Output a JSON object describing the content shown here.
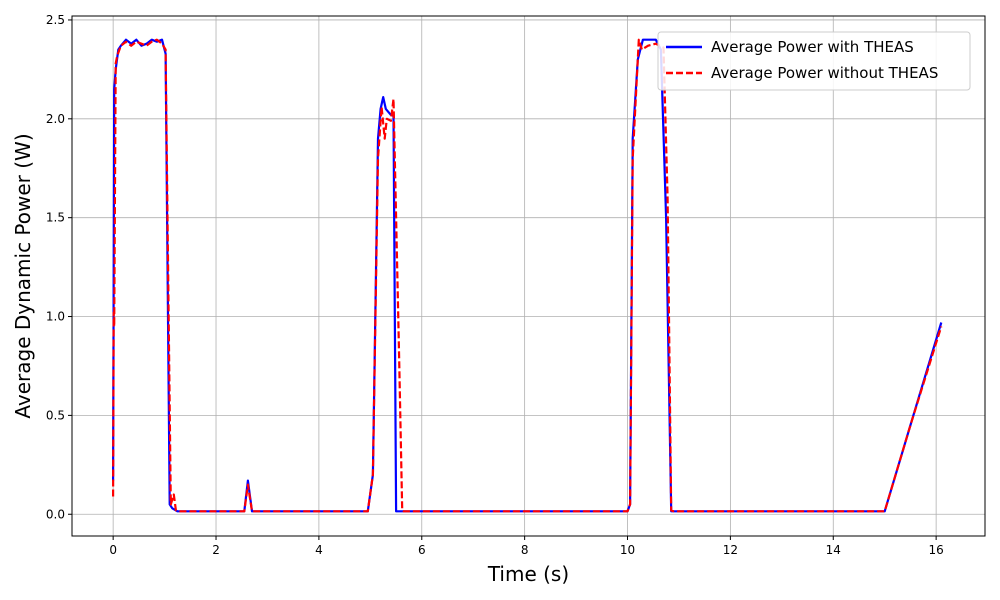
{
  "chart_data": {
    "type": "line",
    "title": "",
    "xlabel": "Time (s)",
    "ylabel": "Average Dynamic Power (W)",
    "xlim": [
      -0.8,
      16.95
    ],
    "ylim": [
      -0.11,
      2.52
    ],
    "xticks": [
      0,
      2,
      4,
      6,
      8,
      10,
      12,
      14,
      16
    ],
    "xtick_labels": [
      "0",
      "2",
      "4",
      "6",
      "8",
      "10",
      "12",
      "14",
      "16"
    ],
    "yticks": [
      0.0,
      0.5,
      1.0,
      1.5,
      2.0,
      2.5
    ],
    "ytick_labels": [
      "0.0",
      "0.5",
      "1.0",
      "1.5",
      "2.0",
      "2.5"
    ],
    "grid": true,
    "legend_position": "top-right",
    "series": [
      {
        "name": "Average Power with THEAS",
        "color": "#0000ff",
        "style": "solid",
        "x": [
          0.0,
          0.02,
          0.05,
          0.1,
          0.15,
          0.25,
          0.35,
          0.45,
          0.55,
          0.65,
          0.75,
          0.85,
          0.95,
          1.02,
          1.1,
          1.15,
          1.25,
          1.5,
          2.0,
          2.5,
          2.55,
          2.62,
          2.7,
          3.0,
          4.0,
          4.95,
          5.05,
          5.15,
          5.2,
          5.25,
          5.3,
          5.4,
          5.45,
          5.5,
          5.55,
          6.0,
          8.0,
          10.0,
          10.05,
          10.1,
          10.2,
          10.3,
          10.4,
          10.55,
          10.65,
          10.75,
          10.85,
          10.9,
          11.0,
          12.0,
          13.0,
          14.0,
          15.0,
          15.5,
          16.1
        ],
        "values": [
          0.17,
          2.15,
          2.25,
          2.35,
          2.37,
          2.4,
          2.38,
          2.4,
          2.37,
          2.38,
          2.4,
          2.39,
          2.4,
          2.33,
          0.05,
          0.03,
          0.015,
          0.015,
          0.015,
          0.015,
          0.015,
          0.17,
          0.015,
          0.015,
          0.015,
          0.015,
          0.2,
          1.9,
          2.05,
          2.11,
          2.05,
          2.02,
          2.02,
          0.015,
          0.015,
          0.015,
          0.015,
          0.015,
          0.05,
          1.9,
          2.3,
          2.4,
          2.4,
          2.4,
          2.35,
          1.5,
          0.015,
          0.015,
          0.015,
          0.015,
          0.015,
          0.015,
          0.015,
          0.45,
          0.97
        ]
      },
      {
        "name": "Average Power without THEAS",
        "color": "#ff0000",
        "style": "dashed",
        "x": [
          0.0,
          0.01,
          0.02,
          0.05,
          0.08,
          0.15,
          0.25,
          0.35,
          0.45,
          0.55,
          0.65,
          0.75,
          0.85,
          0.95,
          1.02,
          1.12,
          1.18,
          1.22,
          1.3,
          1.5,
          2.0,
          2.5,
          2.55,
          2.62,
          2.7,
          3.0,
          4.0,
          4.95,
          5.05,
          5.15,
          5.22,
          5.28,
          5.32,
          5.4,
          5.45,
          5.5,
          5.56,
          5.62,
          5.65,
          6.0,
          8.0,
          10.0,
          10.05,
          10.1,
          10.22,
          10.28,
          10.4,
          10.55,
          10.62,
          10.7,
          10.78,
          10.85,
          10.9,
          11.0,
          12.0,
          14.0,
          15.0,
          15.5,
          16.1
        ],
        "values": [
          0.09,
          1.02,
          0.95,
          2.28,
          2.32,
          2.37,
          2.39,
          2.37,
          2.39,
          2.38,
          2.37,
          2.39,
          2.4,
          2.38,
          2.35,
          0.05,
          0.1,
          0.02,
          0.015,
          0.015,
          0.015,
          0.015,
          0.015,
          0.15,
          0.015,
          0.015,
          0.015,
          0.015,
          0.2,
          1.8,
          2.06,
          1.9,
          2.0,
          1.99,
          2.1,
          1.5,
          0.8,
          0.02,
          0.015,
          0.015,
          0.015,
          0.015,
          0.05,
          1.8,
          2.4,
          2.35,
          2.37,
          2.38,
          2.37,
          2.36,
          1.6,
          0.02,
          0.015,
          0.015,
          0.015,
          0.015,
          0.015,
          0.45,
          0.95
        ]
      }
    ]
  }
}
